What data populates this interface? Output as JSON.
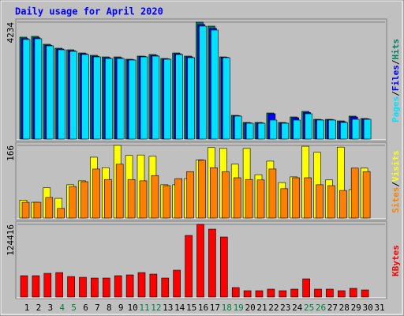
{
  "chart_data": [
    {
      "type": "bar",
      "title": "Daily usage for April 2020",
      "legend_separator": "/",
      "ylim": [
        0,
        4234
      ],
      "yticks": [
        4234
      ],
      "series": [
        {
          "name": "Hits",
          "color": "#008060",
          "values": [
            3691,
            3719,
            3433,
            3290,
            3233,
            3118,
            3033,
            2975,
            2975,
            2890,
            3004,
            3061,
            2918,
            3118,
            3004,
            4234,
            4091,
            2975,
            858,
            601,
            601,
            944,
            601,
            801,
            1001,
            715,
            715,
            658,
            830,
            744,
            null
          ]
        },
        {
          "name": "Files",
          "color": "#0000ff",
          "values": [
            3640,
            3670,
            3400,
            3260,
            3200,
            3090,
            3000,
            2945,
            2945,
            2875,
            2990,
            3030,
            2905,
            3090,
            2975,
            4150,
            4010,
            2960,
            845,
            585,
            585,
            916,
            585,
            772,
            960,
            700,
            700,
            630,
            800,
            730,
            null
          ]
        },
        {
          "name": "Pages",
          "color": "#00e0ff",
          "values": [
            3605,
            3633,
            3376,
            3233,
            3176,
            3061,
            2975,
            2918,
            2918,
            2861,
            2975,
            3004,
            2890,
            3061,
            2947,
            4091,
            3948,
            2947,
            830,
            572,
            572,
            687,
            572,
            687,
            916,
            687,
            687,
            601,
            715,
            715,
            null
          ]
        }
      ]
    },
    {
      "type": "bar",
      "legend_separator": "/",
      "ylim": [
        0,
        166
      ],
      "yticks": [
        166
      ],
      "series": [
        {
          "name": "Visits",
          "color": "#ffff00",
          "values": [
            41,
            36,
            69,
            45,
            76,
            85,
            139,
            115,
            166,
            143,
            144,
            141,
            76,
            76,
            90,
            133,
            161,
            159,
            123,
            159,
            99,
            130,
            81,
            94,
            164,
            150,
            87,
            162,
            65,
            114,
            null
          ]
        },
        {
          "name": "Sites",
          "color": "#ff8000",
          "values": [
            36,
            36,
            47,
            22,
            72,
            83,
            112,
            88,
            123,
            88,
            85,
            97,
            74,
            90,
            106,
            132,
            115,
            106,
            92,
            88,
            87,
            112,
            67,
            92,
            92,
            76,
            74,
            63,
            114,
            106,
            null
          ]
        }
      ]
    },
    {
      "type": "bar",
      "ylim": [
        0,
        124416
      ],
      "yticks": [
        124416
      ],
      "categories": [
        "1",
        "2",
        "3",
        "4",
        "5",
        "6",
        "7",
        "8",
        "9",
        "10",
        "11",
        "12",
        "13",
        "14",
        "15",
        "16",
        "17",
        "18",
        "19",
        "20",
        "21",
        "22",
        "23",
        "24",
        "25",
        "26",
        "27",
        "28",
        "29",
        "30",
        "31"
      ],
      "category_colors": [
        "#000",
        "#000",
        "#000",
        "#008040",
        "#008040",
        "#000",
        "#000",
        "#000",
        "#000",
        "#000",
        "#008040",
        "#008040",
        "#000",
        "#000",
        "#000",
        "#000",
        "#000",
        "#008040",
        "#008040",
        "#000",
        "#000",
        "#000",
        "#000",
        "#000",
        "#008040",
        "#008040",
        "#000",
        "#000",
        "#000",
        "#000",
        "#000"
      ],
      "series": [
        {
          "name": "KBytes",
          "color": "#ff0000",
          "values": [
            36504,
            36504,
            40560,
            41912,
            35152,
            33800,
            32448,
            32448,
            36504,
            37856,
            41912,
            39208,
            32448,
            45968,
            105456,
            124416,
            116272,
            102752,
            16224,
            10816,
            10816,
            13520,
            10816,
            13520,
            31096,
            13520,
            13520,
            10816,
            14872,
            12168,
            null
          ]
        }
      ]
    }
  ]
}
